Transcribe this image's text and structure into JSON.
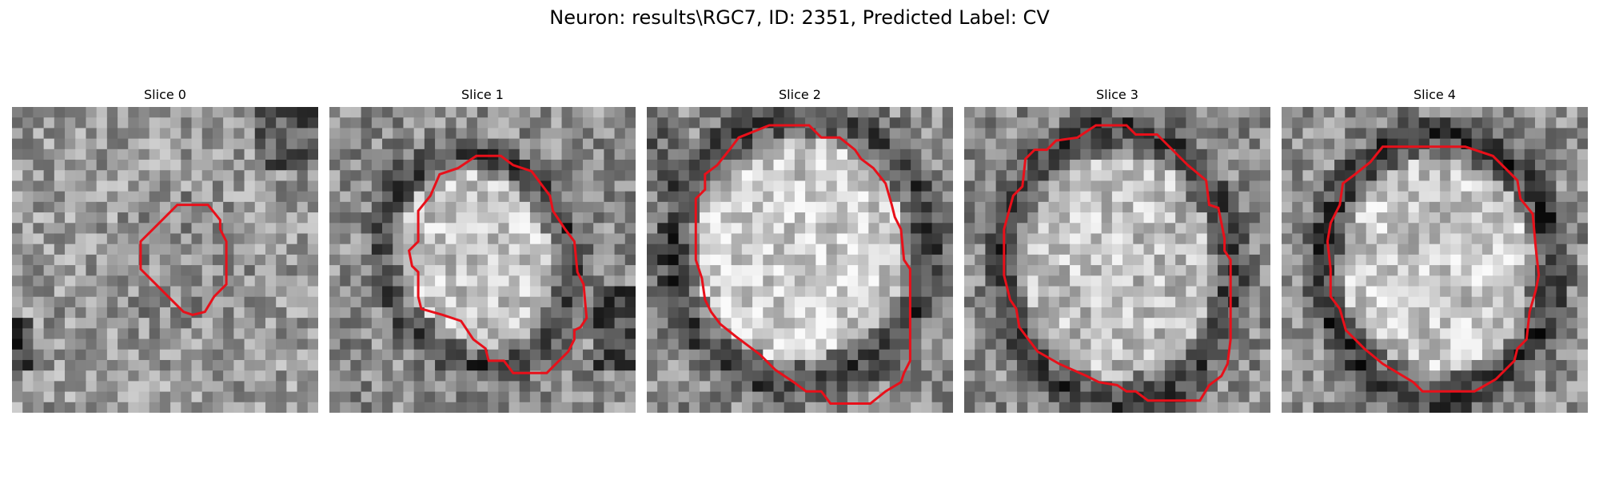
{
  "figure": {
    "title": "Neuron: results\\RGC7, ID: 2351, Predicted Label: CV"
  },
  "panels": [
    {
      "title": "Slice 0",
      "image": "grayscale-microscopy-slice",
      "contour": "red-cell-outline"
    },
    {
      "title": "Slice 1",
      "image": "grayscale-microscopy-slice",
      "contour": "red-cell-outline"
    },
    {
      "title": "Slice 2",
      "image": "grayscale-microscopy-slice",
      "contour": "red-cell-outline"
    },
    {
      "title": "Slice 3",
      "image": "grayscale-microscopy-slice",
      "contour": "red-cell-outline"
    },
    {
      "title": "Slice 4",
      "image": "grayscale-microscopy-slice",
      "contour": "red-cell-outline"
    }
  ],
  "colors": {
    "contour": "#e8101a",
    "background": "#ffffff"
  }
}
